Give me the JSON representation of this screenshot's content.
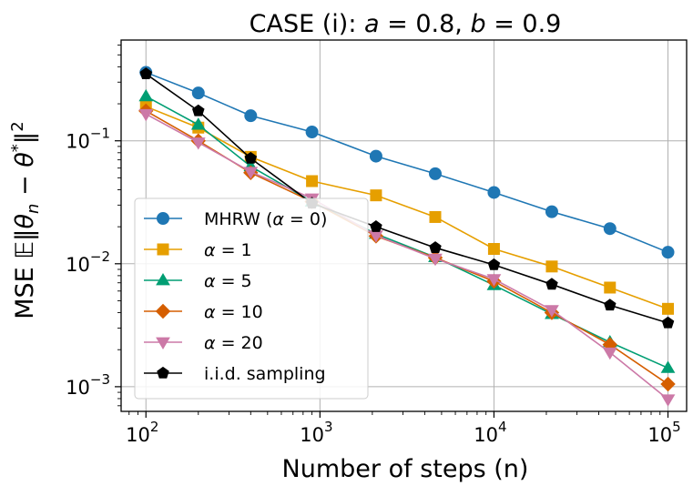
{
  "chart_data": {
    "type": "line",
    "title": "CASE (i): a = 0.8, b = 0.9",
    "title_parts": {
      "prefix": "CASE (i): ",
      "a_sym": "a",
      "a_val": " = 0.8, ",
      "b_sym": "b",
      "b_val": " = 0.9"
    },
    "xlabel": "Number of steps (n)",
    "ylabel": "MSE 𝔼‖θn − θ*‖²",
    "ylabel_parts": {
      "prefix": "MSE ",
      "E": "𝔼",
      "open": "‖",
      "theta": "θ",
      "sub_n": "n",
      "minus": " − ",
      "theta2": "θ",
      "star": "*",
      "close": "‖",
      "sq": "2"
    },
    "xscale": "log",
    "yscale": "log",
    "xlim": [
      72,
      128000
    ],
    "ylim": [
      0.00063,
      0.66
    ],
    "grid": true,
    "legend_position": "lower-left",
    "xticks": [
      {
        "value": 100,
        "base": "10",
        "exp": "2"
      },
      {
        "value": 1000,
        "base": "10",
        "exp": "3"
      },
      {
        "value": 10000,
        "base": "10",
        "exp": "4"
      },
      {
        "value": 100000,
        "base": "10",
        "exp": "5"
      }
    ],
    "yticks": [
      {
        "value": 0.001,
        "base": "10",
        "exp": "−3"
      },
      {
        "value": 0.01,
        "base": "10",
        "exp": "−2"
      },
      {
        "value": 0.1,
        "base": "10",
        "exp": "−1"
      }
    ],
    "series": [
      {
        "name": "MHRW (α = 0)",
        "legend": {
          "text": "MHRW (",
          "sym": "α",
          "rest": " = 0)"
        },
        "color": "#1f77b4",
        "marker": "circle",
        "x": [
          100,
          200,
          400,
          900,
          2100,
          4600,
          10000,
          21500,
          46400,
          100000
        ],
        "y": [
          0.36,
          0.245,
          0.16,
          0.118,
          0.075,
          0.054,
          0.038,
          0.0265,
          0.0193,
          0.0124
        ]
      },
      {
        "name": "α = 1",
        "legend": {
          "text": "",
          "sym": "α",
          "rest": " = 1"
        },
        "color": "#e69f00",
        "marker": "square",
        "x": [
          100,
          200,
          400,
          900,
          2100,
          4600,
          10000,
          21500,
          46400,
          100000
        ],
        "y": [
          0.19,
          0.128,
          0.074,
          0.047,
          0.036,
          0.024,
          0.0132,
          0.0095,
          0.0064,
          0.0043
        ]
      },
      {
        "name": "α = 5",
        "legend": {
          "text": "",
          "sym": "α",
          "rest": " = 5"
        },
        "color": "#009e73",
        "marker": "triangle-up",
        "x": [
          100,
          200,
          400,
          900,
          2100,
          4600,
          10000,
          21500,
          46400,
          100000
        ],
        "y": [
          0.23,
          0.135,
          0.062,
          0.032,
          0.0175,
          0.0113,
          0.0067,
          0.0039,
          0.0023,
          0.00142
        ]
      },
      {
        "name": "α = 10",
        "legend": {
          "text": "",
          "sym": "α",
          "rest": " = 10"
        },
        "color": "#d55e00",
        "marker": "diamond",
        "x": [
          100,
          200,
          400,
          900,
          2100,
          4600,
          10000,
          21500,
          46400,
          100000
        ],
        "y": [
          0.175,
          0.1,
          0.055,
          0.032,
          0.0168,
          0.0112,
          0.0072,
          0.004,
          0.0022,
          0.00105
        ]
      },
      {
        "name": "α = 20",
        "legend": {
          "text": "",
          "sym": "α",
          "rest": " = 20"
        },
        "color": "#cc79a7",
        "marker": "triangle-down",
        "x": [
          100,
          200,
          400,
          900,
          2100,
          4600,
          10000,
          21500,
          46400,
          100000
        ],
        "y": [
          0.165,
          0.097,
          0.056,
          0.034,
          0.017,
          0.011,
          0.0075,
          0.0042,
          0.0019,
          0.00079
        ]
      },
      {
        "name": "i.i.d. sampling",
        "legend": {
          "text": "i.i.d. sampling",
          "sym": "",
          "rest": ""
        },
        "color": "#000000",
        "marker": "pentagon",
        "x": [
          100,
          200,
          400,
          900,
          2100,
          4600,
          10000,
          21500,
          46400,
          100000
        ],
        "y": [
          0.35,
          0.175,
          0.072,
          0.031,
          0.02,
          0.0135,
          0.0098,
          0.0068,
          0.0046,
          0.0033
        ]
      }
    ]
  }
}
